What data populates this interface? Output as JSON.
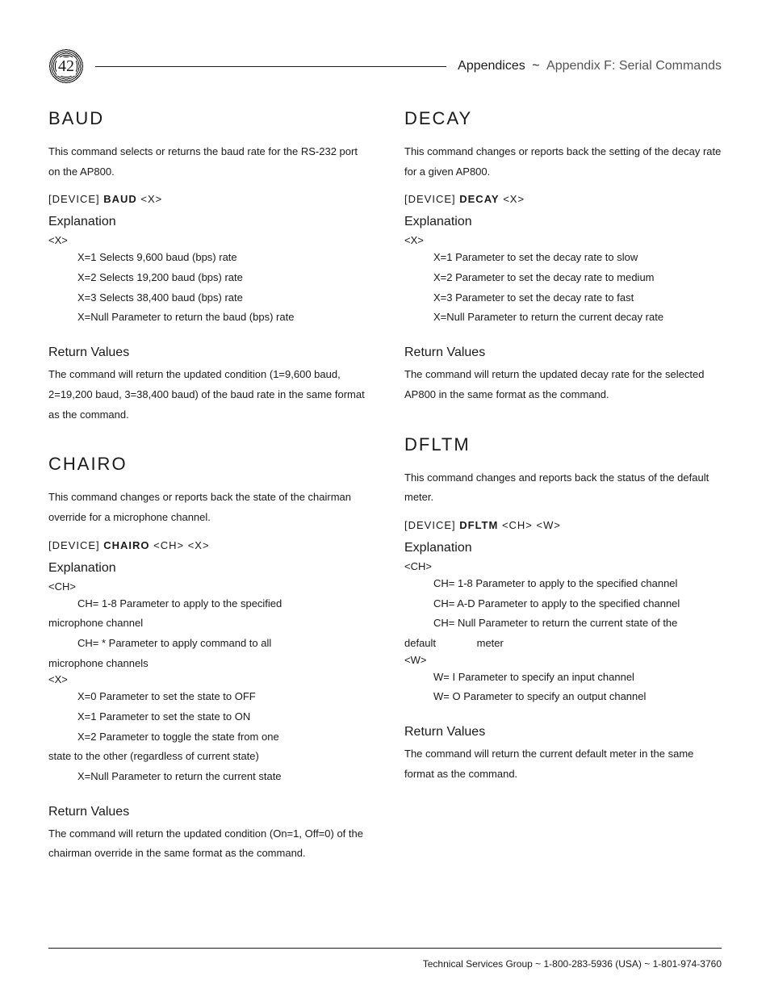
{
  "page_number": "42",
  "header": {
    "section": "Appendices",
    "separator": "~",
    "subsection": "Appendix F: Serial Commands"
  },
  "left": {
    "baud": {
      "title": "BAUD",
      "desc": "This command selects or returns the baud rate for the RS-232 port on the AP800.",
      "syntax_dev": "[DEVICE] ",
      "syntax_name": "BAUD",
      "syntax_args": " <X>",
      "explanation_h": "Explanation",
      "x_tag": "<X>",
      "x_lines": [
        "X=1 Selects 9,600 baud (bps) rate",
        "X=2 Selects 19,200 baud (bps) rate",
        "X=3 Selects 38,400 baud (bps) rate",
        "X=Null Parameter to return the baud (bps) rate"
      ],
      "rv_h": "Return Values",
      "rv_body": "The command will return the updated condition (1=9,600 baud, 2=19,200 baud, 3=38,400 baud) of the baud rate in the same format as the command."
    },
    "chairo": {
      "title": "CHAIRO",
      "desc": "This command changes or reports back the state of the chairman override for a microphone channel.",
      "syntax_dev": "[DEVICE] ",
      "syntax_name": "CHAIRO",
      "syntax_args": " <CH> <X>",
      "explanation_h": "Explanation",
      "ch_tag": "<CH>",
      "ch_line1a": "CH= 1-8 Parameter to apply to the specified",
      "ch_line1b": "microphone channel",
      "ch_line2a": "CH= * Parameter to apply command to all",
      "ch_line2b": "microphone channels",
      "x_tag": "<X>",
      "x_lines_a": [
        "X=0 Parameter to set the state to OFF",
        "X=1 Parameter to set the state to ON"
      ],
      "x_line3a": "X=2 Parameter to toggle the state from one",
      "x_line3b": "state to the other (regardless of current state)",
      "x_line4": "X=Null Parameter to return the current state",
      "rv_h": "Return Values",
      "rv_body": "The command will return the updated condition (On=1, Off=0) of the chairman override in the same format as the command."
    }
  },
  "right": {
    "decay": {
      "title": "DECAY",
      "desc": "This command changes or reports back the setting of the decay rate for a given AP800.",
      "syntax_dev": "[DEVICE] ",
      "syntax_name": "DECAY",
      "syntax_args": " <X>",
      "explanation_h": "Explanation",
      "x_tag": "<X>",
      "x_lines": [
        "X=1 Parameter to set the decay rate to slow",
        "X=2 Parameter to set the decay rate to medium",
        "X=3 Parameter to set the decay rate to fast",
        "X=Null Parameter to return the current decay rate"
      ],
      "rv_h": "Return Values",
      "rv_body": "The command will return the updated decay rate for the selected AP800 in the same format as the command."
    },
    "dfltm": {
      "title": "DFLTM",
      "desc": "This command changes and reports back the status of the default meter.",
      "syntax_dev": "[DEVICE] ",
      "syntax_name": "DFLTM",
      "syntax_args": " <CH> <W>",
      "explanation_h": "Explanation",
      "ch_tag": "<CH>",
      "ch_lines": [
        "CH= 1-8 Parameter to apply to the specified channel",
        "CH= A-D Parameter to apply to the specified channel"
      ],
      "ch_line3a": "CH= Null Parameter to return the current state of the",
      "ch_line3b_a": "default",
      "ch_line3b_b": "meter",
      "w_tag": "<W>",
      "w_lines": [
        "W= I Parameter to specify an input channel",
        "W= O Parameter to specify an output channel"
      ],
      "rv_h": "Return Values",
      "rv_body": "The command will return the current default meter in the same format as the command."
    }
  },
  "footer": {
    "label": "Technical Services Group",
    "sep": " ~ ",
    "phone1": "1-800-283-5936 (USA)",
    "phone2": "1-801-974-3760"
  }
}
